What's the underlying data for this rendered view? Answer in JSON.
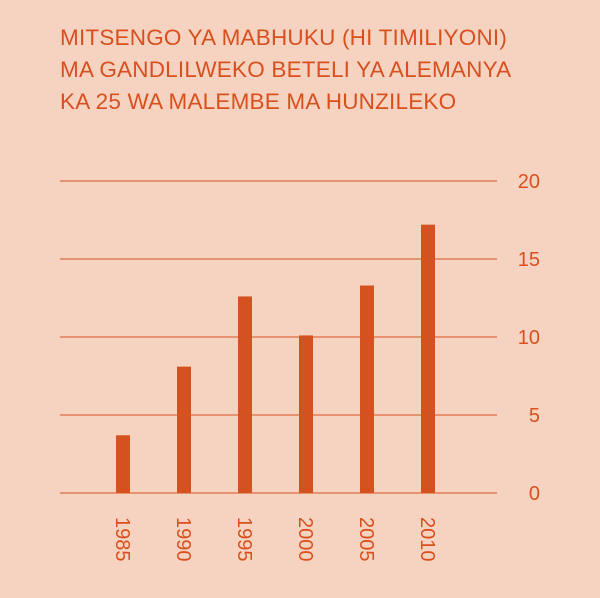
{
  "title_lines": [
    "MITSENGO YA MABHUKU (HI TIMILIYONI)",
    "MA GANDLILWEKO BETELI YA ALEMANYA",
    "KA 25 WA MALEMBE MA HUNZILEKO"
  ],
  "colors": {
    "background": "#f5d3c0",
    "accent": "#d9501f",
    "bar": "#d4521f"
  },
  "chart_data": {
    "type": "bar",
    "title": "MITSENGO YA MABHUKU (HI TIMILIYONI) MA GANDLILWEKO BETELI YA ALEMANYA KA 25 WA MALEMBE MA HUNZILEKO",
    "categories": [
      "1985",
      "1990",
      "1995",
      "2000",
      "2005",
      "2010"
    ],
    "values": [
      3.7,
      8.1,
      12.6,
      10.1,
      13.3,
      17.2
    ],
    "ylim": [
      0,
      20
    ],
    "yticks": [
      0,
      5,
      10,
      15,
      20
    ],
    "ytick_labels": [
      "0",
      "5",
      "10",
      "15",
      "20"
    ],
    "xlabel": "",
    "ylabel": "",
    "grid": true,
    "yaxis_position": "right",
    "xtick_rotation": "vertical"
  }
}
